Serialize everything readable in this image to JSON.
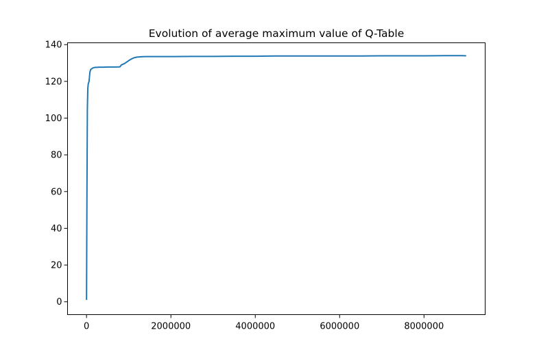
{
  "figure": {
    "background": "#ffffff"
  },
  "chart_data": {
    "type": "line",
    "title": "Evolution of average maximum value of Q-Table",
    "xlabel": "",
    "ylabel": "",
    "xlim": [
      -450000,
      9450000
    ],
    "ylim": [
      -7,
      141
    ],
    "xticks": [
      {
        "value": 0,
        "label": "0"
      },
      {
        "value": 2000000,
        "label": "2000000"
      },
      {
        "value": 4000000,
        "label": "4000000"
      },
      {
        "value": 6000000,
        "label": "6000000"
      },
      {
        "value": 8000000,
        "label": "8000000"
      }
    ],
    "yticks": [
      {
        "value": 0,
        "label": "0"
      },
      {
        "value": 20,
        "label": "20"
      },
      {
        "value": 40,
        "label": "40"
      },
      {
        "value": 60,
        "label": "60"
      },
      {
        "value": 80,
        "label": "80"
      },
      {
        "value": 100,
        "label": "100"
      },
      {
        "value": 120,
        "label": "120"
      },
      {
        "value": 140,
        "label": "140"
      }
    ],
    "grid": false,
    "legend": "none",
    "series": [
      {
        "color": "#1f77b4",
        "x": [
          0,
          10000,
          20000,
          30000,
          40000,
          60000,
          80000,
          100000,
          130000,
          160000,
          200000,
          300000,
          400000,
          500000,
          600000,
          700000,
          790000,
          830000,
          900000,
          950000,
          1000000,
          1050000,
          1100000,
          1150000,
          1200000,
          1300000,
          1400000,
          1500000,
          1600000,
          1800000,
          2000000,
          2500000,
          3000000,
          3500000,
          4000000,
          4500000,
          5000000,
          5500000,
          6000000,
          6500000,
          7000000,
          7500000,
          8000000,
          8500000,
          8900000,
          9000000
        ],
        "y": [
          1,
          60,
          105,
          116,
          118.5,
          120,
          125,
          126.5,
          127,
          127.4,
          127.6,
          127.7,
          127.7,
          127.8,
          127.8,
          127.8,
          127.9,
          129,
          129.7,
          130.5,
          131.3,
          132,
          132.6,
          133,
          133.2,
          133.4,
          133.5,
          133.5,
          133.5,
          133.5,
          133.5,
          133.6,
          133.6,
          133.7,
          133.7,
          133.8,
          133.8,
          133.8,
          133.8,
          133.8,
          133.9,
          133.9,
          133.9,
          134,
          134,
          133.9
        ]
      }
    ]
  }
}
